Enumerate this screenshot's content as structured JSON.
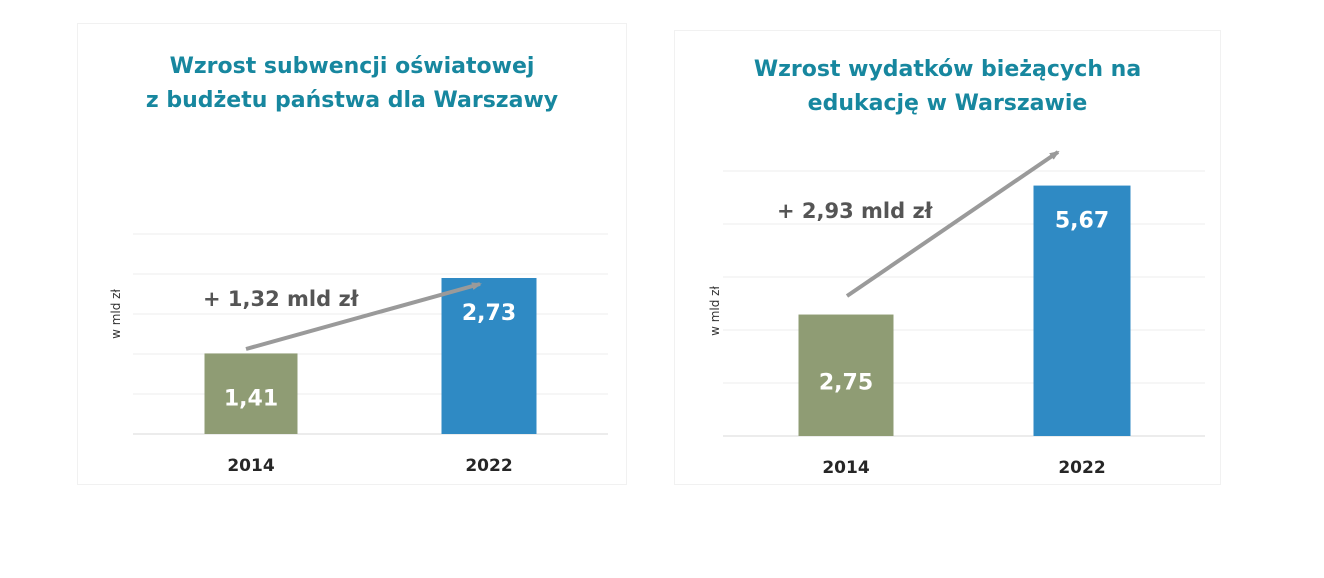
{
  "chart_data": [
    {
      "type": "bar",
      "title": "Wzrost subwencji oświatowej\nz budżetu państwa dla Warszawy",
      "ylabel": "w mld zł",
      "categories": [
        "2014",
        "2022"
      ],
      "values": [
        1.41,
        2.73
      ],
      "value_labels": [
        "1,41",
        "2,73"
      ],
      "annotation": "+ 1,32 mld zł",
      "ylim": [
        0,
        3.5
      ],
      "grid": true,
      "colors": [
        "#8f9c74",
        "#2f8ac4"
      ],
      "arrow_color": "#9a9a9a"
    },
    {
      "type": "bar",
      "title": "Wzrost wydatków bieżących na\nedukację w Warszawie",
      "ylabel": "w mld zł",
      "categories": [
        "2014",
        "2022"
      ],
      "values": [
        2.75,
        5.67
      ],
      "value_labels": [
        "2,75",
        "5,67"
      ],
      "annotation": "+ 2,93 mld zł",
      "ylim": [
        0,
        6
      ],
      "grid": true,
      "colors": [
        "#8f9c74",
        "#2f8ac4"
      ],
      "arrow_color": "#9a9a9a"
    }
  ]
}
